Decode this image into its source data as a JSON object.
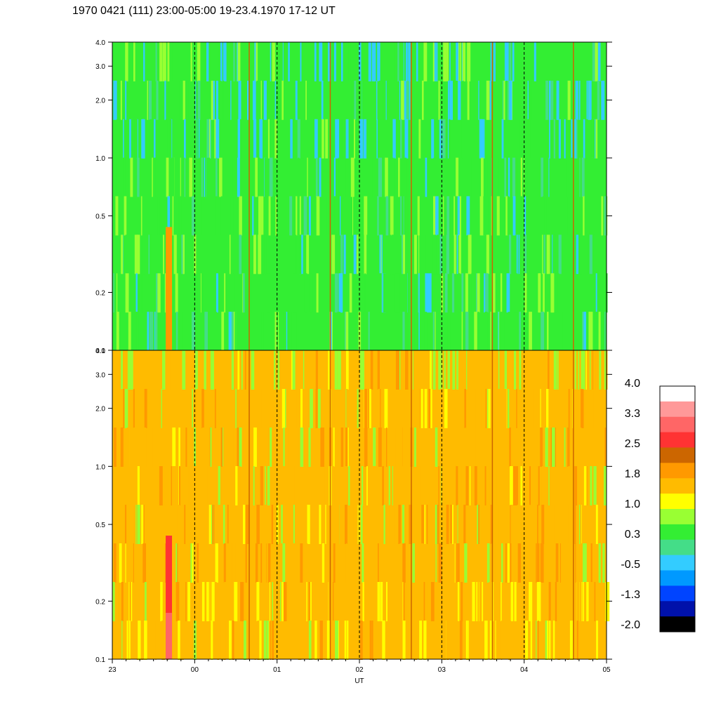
{
  "chart_data": {
    "type": "heatmap",
    "title": "1970 0421 (111) 23:00-05:00 19-23.4.1970  17-12 UT",
    "xlabel": "UT",
    "x_ticks": [
      "23",
      "00",
      "01",
      "02",
      "03",
      "04",
      "05"
    ],
    "y_ticks": [
      {
        "value": 0.1,
        "label": "0.1"
      },
      {
        "value": 0.2,
        "label": "0.2"
      },
      {
        "value": 0.5,
        "label": "0.5"
      },
      {
        "value": 1.0,
        "label": "1.0"
      },
      {
        "value": 2.0,
        "label": "2.0"
      },
      {
        "value": 3.0,
        "label": "3.0"
      },
      {
        "value": 4.0,
        "label": "4.0"
      }
    ],
    "y_scale": "log",
    "ylim": [
      0.1,
      4.0
    ],
    "hour_markers": [
      "00",
      "01",
      "02",
      "03",
      "04"
    ],
    "panels": [
      {
        "name": "upper",
        "dominant_level": 0.3,
        "description": "mostly green/cyan"
      },
      {
        "name": "lower",
        "dominant_level": 1.5,
        "description": "mostly orange/yellow"
      }
    ],
    "colorbar": {
      "labels": [
        "4.0",
        "3.3",
        "2.5",
        "1.8",
        "1.0",
        "0.3",
        "-0.5",
        "-1.3",
        "-2.0"
      ],
      "colors": [
        "#ffffff",
        "#ff9999",
        "#ff6666",
        "#ff3333",
        "#cc6600",
        "#ff9900",
        "#ffbb00",
        "#ffff00",
        "#99ff33",
        "#33ee33",
        "#44dd88",
        "#33ccff",
        "#0099ff",
        "#0044ff",
        "#0011aa",
        "#000000"
      ]
    }
  }
}
